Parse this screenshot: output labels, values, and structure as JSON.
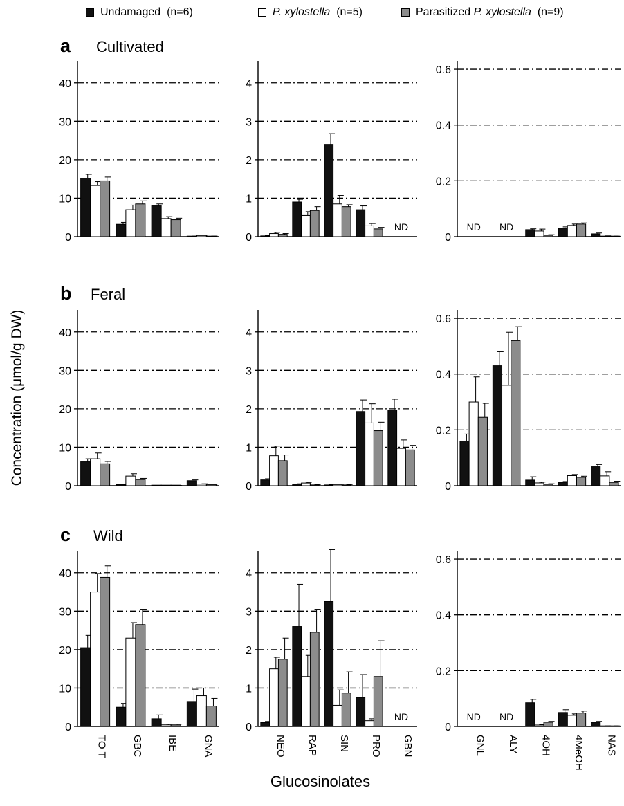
{
  "legend": [
    {
      "pre": "Undamaged",
      "italic": "",
      "post": "(n=6)",
      "color": "#111111"
    },
    {
      "pre": "",
      "italic": "P. xylostella",
      "post": "(n=5)",
      "color": "#ffffff"
    },
    {
      "pre": "Parasitized",
      "italic": "P. xylostella",
      "post": "(n=9)",
      "color": "#8c8c8c"
    }
  ],
  "ylabel": "Concentration (μmol/g DW)",
  "xlabel": "Glucosinolates",
  "chart_data": {
    "type": "bar",
    "series": [
      {
        "name": "Undamaged (n=6)",
        "color": "#111111"
      },
      {
        "name": "P. xylostella (n=5)",
        "color": "#ffffff"
      },
      {
        "name": "Parasitized P. xylostella (n=9)",
        "color": "#8c8c8c"
      }
    ],
    "rows": [
      {
        "letter": "a",
        "name": "Cultivated"
      },
      {
        "letter": "b",
        "name": "Feral"
      },
      {
        "letter": "c",
        "name": "Wild"
      }
    ],
    "panels": [
      {
        "categories": [
          "TO T",
          "GBC",
          "IBE",
          "GNA"
        ],
        "ylim": [
          0,
          45
        ],
        "yticks": [
          0,
          10,
          20,
          30,
          40
        ],
        "tick_labels": [
          "0",
          "10",
          "20",
          "30",
          "40"
        ]
      },
      {
        "categories": [
          "NEO",
          "RAP",
          "SIN",
          "PRO",
          "GBN"
        ],
        "ylim": [
          0,
          4.5
        ],
        "yticks": [
          0,
          1,
          2,
          3,
          4
        ],
        "tick_labels": [
          "0",
          "1",
          "2",
          "3",
          "4"
        ]
      },
      {
        "categories": [
          "GNL",
          "ALY",
          "4OH",
          "4MeOH",
          "NAS"
        ],
        "ylim": [
          0,
          0.62
        ],
        "yticks": [
          0,
          0.2,
          0.4,
          0.6
        ],
        "tick_labels": [
          "0",
          "0.2",
          "0.4",
          "0.6"
        ]
      }
    ],
    "nd_label": "ND",
    "values": [
      [
        [
          [
            15.2,
            1.0
          ],
          [
            13.3,
            1.0
          ],
          [
            14.5,
            1.0
          ],
          [
            3.2,
            0.5
          ],
          [
            7.0,
            1.2
          ],
          [
            8.5,
            0.8
          ],
          [
            8.0,
            0.5
          ],
          [
            4.7,
            0.5
          ],
          [
            4.4,
            0.4
          ],
          [
            0.1,
            0.05
          ],
          [
            0.3,
            0.1
          ],
          [
            0.1,
            0.05
          ]
        ],
        [
          [
            0.02,
            0.01
          ],
          [
            0.08,
            0.03
          ],
          [
            0.06,
            0.02
          ],
          [
            0.9,
            0.07
          ],
          [
            0.55,
            0.1
          ],
          [
            0.68,
            0.1
          ],
          [
            2.4,
            0.28
          ],
          [
            0.85,
            0.22
          ],
          [
            0.78,
            0.05
          ],
          [
            0.7,
            0.1
          ],
          [
            0.28,
            0.06
          ],
          [
            0.2,
            0.04
          ],
          null,
          null,
          null
        ],
        [
          null,
          null,
          null,
          null,
          null,
          null,
          [
            0.025,
            0.003
          ],
          [
            0.02,
            0.007
          ],
          [
            0.005,
            0.002
          ],
          [
            0.03,
            0.005
          ],
          [
            0.04,
            0.005
          ],
          [
            0.045,
            0.004
          ],
          [
            0.01,
            0.003
          ],
          [
            0.002,
            0.001
          ],
          [
            0.001,
            0.001
          ]
        ]
      ],
      [
        [
          [
            6.2,
            0.8
          ],
          [
            7.0,
            1.5
          ],
          [
            5.7,
            0.6
          ],
          [
            0.3,
            0.1
          ],
          [
            2.5,
            0.6
          ],
          [
            1.6,
            0.3
          ],
          [
            0.05,
            0.02
          ],
          [
            0.05,
            0.02
          ],
          [
            0.05,
            0.02
          ],
          [
            1.3,
            0.2
          ],
          [
            0.4,
            0.1
          ],
          [
            0.3,
            0.1
          ]
        ],
        [
          [
            0.15,
            0.03
          ],
          [
            0.78,
            0.25
          ],
          [
            0.65,
            0.15
          ],
          [
            0.04,
            0.01
          ],
          [
            0.07,
            0.02
          ],
          [
            0.02,
            0.01
          ],
          [
            0.02,
            0.01
          ],
          [
            0.03,
            0.01
          ],
          [
            0.02,
            0.01
          ],
          [
            1.93,
            0.3
          ],
          [
            1.63,
            0.5
          ],
          [
            1.43,
            0.22
          ],
          [
            1.97,
            0.28
          ],
          [
            0.97,
            0.22
          ],
          [
            0.93,
            0.12
          ]
        ],
        [
          [
            0.16,
            0.025
          ],
          [
            0.3,
            0.09
          ],
          [
            0.245,
            0.05
          ],
          [
            0.43,
            0.05
          ],
          [
            0.36,
            0.19
          ],
          [
            0.52,
            0.05
          ],
          [
            0.02,
            0.012
          ],
          [
            0.01,
            0.003
          ],
          [
            0.005,
            0.002
          ],
          [
            0.012,
            0.003
          ],
          [
            0.036,
            0.004
          ],
          [
            0.03,
            0.004
          ],
          [
            0.068,
            0.008
          ],
          [
            0.035,
            0.015
          ],
          [
            0.012,
            0.004
          ]
        ]
      ],
      [
        [
          [
            20.5,
            3.2
          ],
          [
            35.0,
            4.8
          ],
          [
            38.8,
            3.0
          ],
          [
            5.0,
            1.0
          ],
          [
            23.0,
            4.0
          ],
          [
            26.5,
            4.0
          ],
          [
            2.0,
            1.0
          ],
          [
            0.4,
            0.2
          ],
          [
            0.4,
            0.2
          ],
          [
            6.5,
            3.2
          ],
          [
            8.0,
            2.0
          ],
          [
            5.3,
            2.0
          ]
        ],
        [
          [
            0.1,
            0.03
          ],
          [
            1.5,
            0.3
          ],
          [
            1.75,
            0.55
          ],
          [
            2.6,
            1.1
          ],
          [
            1.3,
            0.55
          ],
          [
            2.45,
            0.6
          ],
          [
            3.25,
            1.35
          ],
          [
            0.55,
            0.4
          ],
          [
            0.87,
            0.55
          ],
          [
            0.75,
            0.6
          ],
          [
            0.15,
            0.05
          ],
          [
            1.3,
            0.93
          ],
          null,
          null,
          null
        ],
        [
          null,
          null,
          null,
          null,
          null,
          null,
          [
            0.085,
            0.012
          ],
          [
            0.005,
            0.002
          ],
          [
            0.015,
            0.003
          ],
          [
            0.05,
            0.01
          ],
          [
            0.04,
            0.005
          ],
          [
            0.048,
            0.007
          ],
          [
            0.015,
            0.003
          ],
          [
            0.001,
            0.001
          ],
          [
            0.001,
            0.001
          ]
        ]
      ]
    ],
    "nd_groups": [
      [
        [],
        [
          4
        ],
        [
          0,
          1
        ]
      ],
      [
        [],
        [],
        []
      ],
      [
        [],
        [
          4
        ],
        [
          0,
          1
        ]
      ]
    ]
  }
}
